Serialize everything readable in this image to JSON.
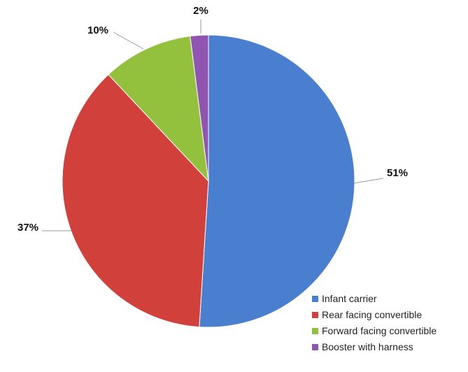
{
  "chart_data": {
    "type": "pie",
    "title": "",
    "categories": [
      "Infant carrier",
      "Rear facing convertible",
      "Forward facing convertible",
      "Booster with harness"
    ],
    "values": [
      51,
      37,
      10,
      2
    ],
    "value_labels": [
      "51%",
      "37%",
      "10%",
      "2%"
    ],
    "colors": [
      "#4a7fcf",
      "#d2403c",
      "#93c13e",
      "#8f55b0"
    ],
    "start_angle_deg": 0,
    "direction": "clockwise",
    "legend_position": "bottom-right",
    "legend": [
      {
        "label": "Infant carrier",
        "color": "#4a7fcf"
      },
      {
        "label": "Rear facing convertible",
        "color": "#d2403c"
      },
      {
        "label": "Forward facing convertible",
        "color": "#93c13e"
      },
      {
        "label": "Booster with harness",
        "color": "#8f55b0"
      }
    ]
  }
}
